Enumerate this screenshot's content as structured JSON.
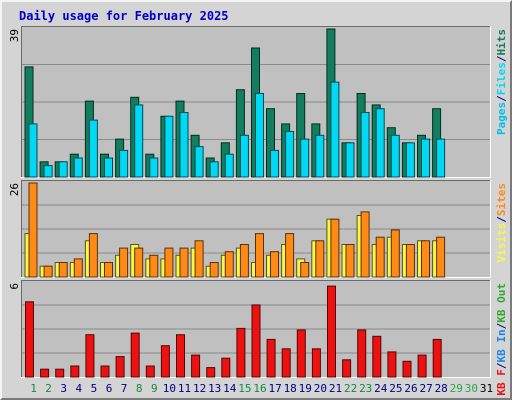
{
  "title": "Daily usage for February 2025",
  "colors": {
    "hits": "#127e5e",
    "files": "#00d8f4",
    "pages": "#00c0e8",
    "visits": "#f7f74a",
    "sites": "#ff8a16",
    "kb_in": "#1e88e5",
    "kb_out": "#2eaa2e",
    "kb_f": "#ee1111",
    "plot_bg": "#c0c0c0",
    "weekend_label": "#138a3a",
    "weekday_label": "#000080",
    "future_label": "#2aa844"
  },
  "chart_data": [
    {
      "type": "bar",
      "panel": "hits-files-pages",
      "ymax_label": "39",
      "ylim": [
        0,
        39
      ],
      "legend_parts": [
        {
          "text": "Pages",
          "color_key": "pages"
        },
        {
          "text": "/",
          "color_key": "sep"
        },
        {
          "text": "Files",
          "color_key": "files"
        },
        {
          "text": "/",
          "color_key": "sep"
        },
        {
          "text": "Hits",
          "color_key": "hits"
        }
      ],
      "x": [
        1,
        2,
        3,
        4,
        5,
        6,
        7,
        8,
        9,
        10,
        11,
        12,
        13,
        14,
        15,
        16,
        17,
        18,
        19,
        20,
        21,
        22,
        23,
        24,
        25,
        26,
        27,
        28
      ],
      "series": [
        {
          "name": "Hits",
          "color_key": "hits",
          "values": [
            29,
            4,
            4,
            6,
            20,
            6,
            10,
            21,
            6,
            16,
            20,
            11,
            5,
            9,
            23,
            34,
            18,
            14,
            22,
            14,
            39,
            9,
            22,
            19,
            13,
            9,
            11,
            18
          ]
        },
        {
          "name": "Files",
          "color_key": "files",
          "values": [
            14,
            3,
            4,
            5,
            15,
            5,
            7,
            19,
            5,
            16,
            17,
            8,
            4,
            6,
            11,
            22,
            7,
            12,
            10,
            11,
            25,
            9,
            17,
            18,
            11,
            9,
            10,
            10
          ]
        },
        {
          "name": "Pages",
          "color_key": "pages",
          "values": [
            0,
            0,
            0,
            0,
            0,
            0,
            0,
            0,
            0,
            0,
            0,
            0,
            0,
            0,
            0,
            0,
            0,
            0,
            0,
            0,
            0,
            0,
            0,
            0,
            0,
            0,
            0,
            0
          ]
        }
      ]
    },
    {
      "type": "bar",
      "panel": "visits-sites",
      "ymax_label": "26",
      "ylim": [
        0,
        26
      ],
      "legend_parts": [
        {
          "text": "Visits",
          "color_key": "visits"
        },
        {
          "text": "/",
          "color_key": "sep"
        },
        {
          "text": "Sites",
          "color_key": "sites"
        }
      ],
      "x": [
        1,
        2,
        3,
        4,
        5,
        6,
        7,
        8,
        9,
        10,
        11,
        12,
        13,
        14,
        15,
        16,
        17,
        18,
        19,
        20,
        21,
        22,
        23,
        24,
        25,
        26,
        27,
        28
      ],
      "series": [
        {
          "name": "Visits",
          "color_key": "visits",
          "values": [
            12,
            3,
            4,
            4,
            10,
            4,
            6,
            9,
            5,
            5,
            6,
            8,
            3,
            6,
            8,
            4,
            6,
            9,
            5,
            10,
            16,
            9,
            17,
            9,
            11,
            9,
            10,
            10
          ]
        },
        {
          "name": "Sites",
          "color_key": "sites",
          "values": [
            26,
            3,
            4,
            5,
            12,
            4,
            8,
            8,
            6,
            8,
            8,
            10,
            4,
            7,
            9,
            12,
            7,
            12,
            4,
            10,
            16,
            9,
            18,
            11,
            13,
            9,
            10,
            11
          ]
        }
      ]
    },
    {
      "type": "bar",
      "panel": "kbytes",
      "ymax_label": "6",
      "ylim": [
        0,
        6
      ],
      "legend_parts": [
        {
          "text": "KB F",
          "color_key": "kb_f"
        },
        {
          "text": "/",
          "color_key": "sep"
        },
        {
          "text": "KB In",
          "color_key": "kb_in"
        },
        {
          "text": "/",
          "color_key": "sep"
        },
        {
          "text": "KB Out",
          "color_key": "kb_out"
        }
      ],
      "x": [
        1,
        2,
        3,
        4,
        5,
        6,
        7,
        8,
        9,
        10,
        11,
        12,
        13,
        14,
        15,
        16,
        17,
        18,
        19,
        20,
        21,
        22,
        23,
        24,
        25,
        26,
        27,
        28
      ],
      "series": [
        {
          "name": "KB F",
          "color_key": "kb_f",
          "values": [
            4.8,
            0.5,
            0.5,
            0.7,
            2.7,
            0.7,
            1.3,
            2.8,
            0.7,
            2,
            2.7,
            1.4,
            0.6,
            1.2,
            3.1,
            4.6,
            2.4,
            1.8,
            3,
            1.8,
            5.8,
            1.1,
            3,
            2.6,
            1.6,
            1,
            1.4,
            2.4
          ]
        }
      ]
    }
  ],
  "x_labels": [
    "1",
    "2",
    "3",
    "4",
    "5",
    "6",
    "7",
    "8",
    "9",
    "10",
    "11",
    "12",
    "13",
    "14",
    "15",
    "16",
    "17",
    "18",
    "19",
    "20",
    "21",
    "22",
    "23",
    "24",
    "25",
    "26",
    "27",
    "28",
    "29",
    "30",
    "31"
  ],
  "weekend_days": [
    1,
    2,
    8,
    9,
    15,
    16,
    22,
    23
  ],
  "future_days": [
    29,
    30
  ]
}
